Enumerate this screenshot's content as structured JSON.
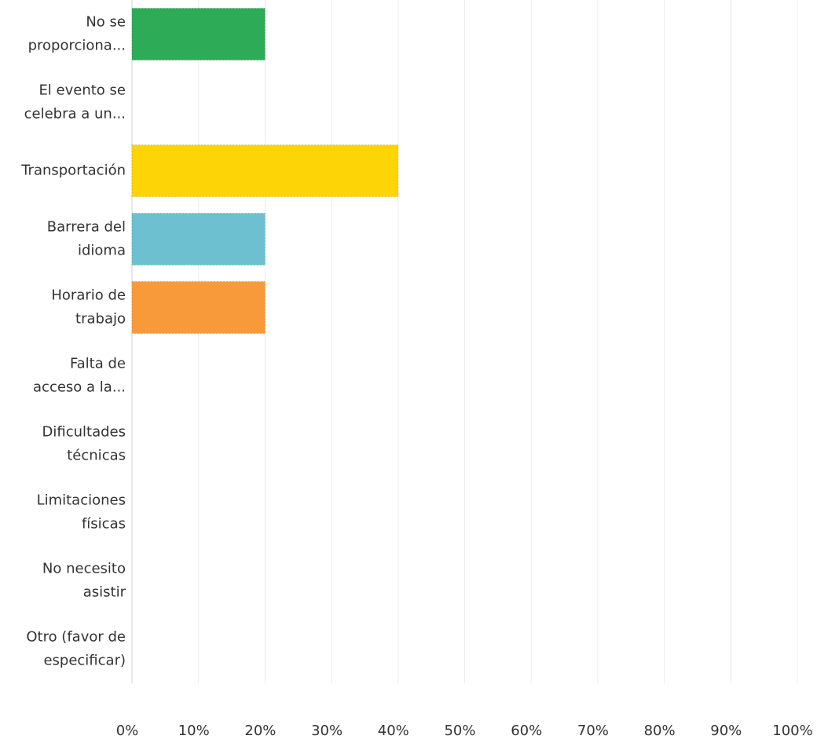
{
  "chart_data": {
    "type": "hbar",
    "categories": [
      [
        "No se",
        "proporciona..."
      ],
      [
        "El evento se",
        "celebra a un..."
      ],
      [
        "Transportación"
      ],
      [
        "Barrera del",
        "idioma"
      ],
      [
        "Horario de",
        "trabajo"
      ],
      [
        "Falta de",
        "acceso a la..."
      ],
      [
        "Dificultades",
        "técnicas"
      ],
      [
        "Limitaciones",
        "físicas"
      ],
      [
        "No necesito",
        "asistir"
      ],
      [
        "Otro (favor de",
        "especificar)"
      ]
    ],
    "values": [
      20,
      0,
      40,
      20,
      20,
      0,
      0,
      0,
      0,
      0
    ],
    "colors": [
      "#2dab57",
      null,
      "#fdd507",
      "#6cc0cf",
      "#f99a3a",
      null,
      null,
      null,
      null,
      null
    ],
    "xlim": [
      0,
      100
    ],
    "xticks": [
      {
        "value": 0,
        "label": "0%"
      },
      {
        "value": 10,
        "label": "10%"
      },
      {
        "value": 20,
        "label": "20%"
      },
      {
        "value": 30,
        "label": "30%"
      },
      {
        "value": 40,
        "label": "40%"
      },
      {
        "value": 50,
        "label": "50%"
      },
      {
        "value": 60,
        "label": "60%"
      },
      {
        "value": 70,
        "label": "70%"
      },
      {
        "value": 80,
        "label": "80%"
      },
      {
        "value": 90,
        "label": "90%"
      },
      {
        "value": 100,
        "label": "100%"
      }
    ],
    "grid": true
  }
}
